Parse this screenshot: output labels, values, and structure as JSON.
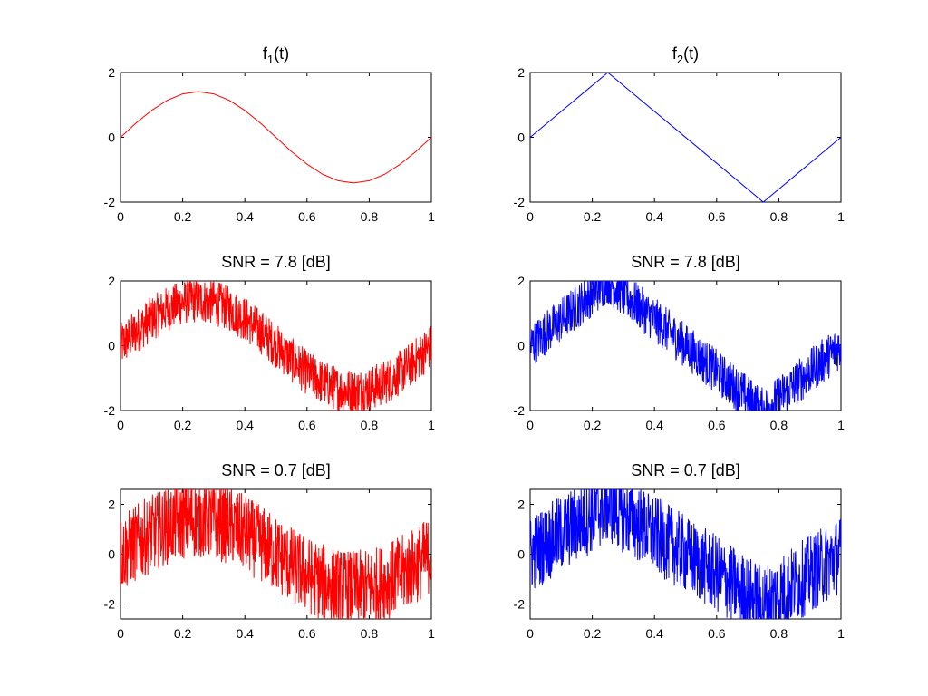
{
  "figure": {
    "colors": {
      "red": "#ff0000",
      "blue": "#0000ff",
      "axes": "#000000",
      "background": "#ffffff"
    }
  },
  "chart_data": [
    {
      "type": "line",
      "title": "f1(t)",
      "title_base": "f",
      "title_sub": "1",
      "title_rest": "(t)",
      "xlim": [
        0,
        1
      ],
      "ylim": [
        -2,
        2
      ],
      "xticks": [
        "0",
        "0.2",
        "0.4",
        "0.6",
        "0.8",
        "1"
      ],
      "yticks": [
        "-2",
        "0",
        "2"
      ],
      "ytick_values": [
        -2,
        0,
        2
      ],
      "grid": false,
      "series": [
        {
          "color": "#ff0000",
          "noise_amplitude": 0,
          "x": [
            0,
            0.05,
            0.1,
            0.15,
            0.2,
            0.25,
            0.3,
            0.35,
            0.4,
            0.45,
            0.5,
            0.55,
            0.6,
            0.65,
            0.7,
            0.75,
            0.8,
            0.85,
            0.9,
            0.95,
            1
          ],
          "y": [
            0,
            0.44,
            0.83,
            1.14,
            1.34,
            1.41,
            1.34,
            1.14,
            0.83,
            0.44,
            0,
            -0.44,
            -0.83,
            -1.14,
            -1.34,
            -1.41,
            -1.34,
            -1.14,
            -0.83,
            -0.44,
            0
          ]
        }
      ]
    },
    {
      "type": "line",
      "title": "f2(t)",
      "title_base": "f",
      "title_sub": "2",
      "title_rest": "(t)",
      "xlim": [
        0,
        1
      ],
      "ylim": [
        -2,
        2
      ],
      "xticks": [
        "0",
        "0.2",
        "0.4",
        "0.6",
        "0.8",
        "1"
      ],
      "yticks": [
        "-2",
        "0",
        "2"
      ],
      "ytick_values": [
        -2,
        0,
        2
      ],
      "grid": false,
      "series": [
        {
          "color": "#0000ff",
          "noise_amplitude": 0,
          "x": [
            0,
            0.25,
            0.75,
            1
          ],
          "y": [
            0,
            2,
            -2,
            0
          ]
        }
      ]
    },
    {
      "type": "line",
      "title": "SNR = 7.8 [dB]",
      "xlim": [
        0,
        1
      ],
      "ylim": [
        -2,
        2
      ],
      "xticks": [
        "0",
        "0.2",
        "0.4",
        "0.6",
        "0.8",
        "1"
      ],
      "yticks": [
        "-2",
        "0",
        "2"
      ],
      "ytick_values": [
        -2,
        0,
        2
      ],
      "grid": false,
      "series": [
        {
          "color": "#ff0000",
          "noise_amplitude": 0.6,
          "x": [
            0,
            0.05,
            0.1,
            0.15,
            0.2,
            0.25,
            0.3,
            0.35,
            0.4,
            0.45,
            0.5,
            0.55,
            0.6,
            0.65,
            0.7,
            0.75,
            0.8,
            0.85,
            0.9,
            0.95,
            1
          ],
          "y": [
            0,
            0.44,
            0.83,
            1.14,
            1.34,
            1.41,
            1.34,
            1.14,
            0.83,
            0.44,
            0,
            -0.44,
            -0.83,
            -1.14,
            -1.34,
            -1.41,
            -1.34,
            -1.14,
            -0.83,
            -0.44,
            0
          ]
        }
      ]
    },
    {
      "type": "line",
      "title": "SNR = 7.8 [dB]",
      "xlim": [
        0,
        1
      ],
      "ylim": [
        -2,
        2
      ],
      "xticks": [
        "0",
        "0.2",
        "0.4",
        "0.6",
        "0.8",
        "1"
      ],
      "yticks": [
        "-2",
        "0",
        "2"
      ],
      "ytick_values": [
        -2,
        0,
        2
      ],
      "grid": false,
      "series": [
        {
          "color": "#0000ff",
          "noise_amplitude": 0.6,
          "x": [
            0,
            0.25,
            0.75,
            1
          ],
          "y": [
            0,
            2,
            -2,
            0
          ]
        }
      ]
    },
    {
      "type": "line",
      "title": "SNR = 0.7 [dB]",
      "xlim": [
        0,
        1
      ],
      "ylim": [
        -2.6,
        2.6
      ],
      "xticks": [
        "0",
        "0.2",
        "0.4",
        "0.6",
        "0.8",
        "1"
      ],
      "yticks": [
        "-2",
        "0",
        "2"
      ],
      "ytick_values": [
        -2,
        0,
        2
      ],
      "grid": false,
      "series": [
        {
          "color": "#ff0000",
          "noise_amplitude": 1.35,
          "x": [
            0,
            0.05,
            0.1,
            0.15,
            0.2,
            0.25,
            0.3,
            0.35,
            0.4,
            0.45,
            0.5,
            0.55,
            0.6,
            0.65,
            0.7,
            0.75,
            0.8,
            0.85,
            0.9,
            0.95,
            1
          ],
          "y": [
            0,
            0.44,
            0.83,
            1.14,
            1.34,
            1.41,
            1.34,
            1.14,
            0.83,
            0.44,
            0,
            -0.44,
            -0.83,
            -1.14,
            -1.34,
            -1.41,
            -1.34,
            -1.14,
            -0.83,
            -0.44,
            0
          ]
        }
      ]
    },
    {
      "type": "line",
      "title": "SNR = 0.7 [dB]",
      "xlim": [
        0,
        1
      ],
      "ylim": [
        -2.6,
        2.6
      ],
      "xticks": [
        "0",
        "0.2",
        "0.4",
        "0.6",
        "0.8",
        "1"
      ],
      "yticks": [
        "-2",
        "0",
        "2"
      ],
      "ytick_values": [
        -2,
        0,
        2
      ],
      "grid": false,
      "series": [
        {
          "color": "#0000ff",
          "noise_amplitude": 1.35,
          "x": [
            0,
            0.25,
            0.75,
            1
          ],
          "y": [
            0,
            2,
            -2,
            0
          ]
        }
      ]
    }
  ]
}
